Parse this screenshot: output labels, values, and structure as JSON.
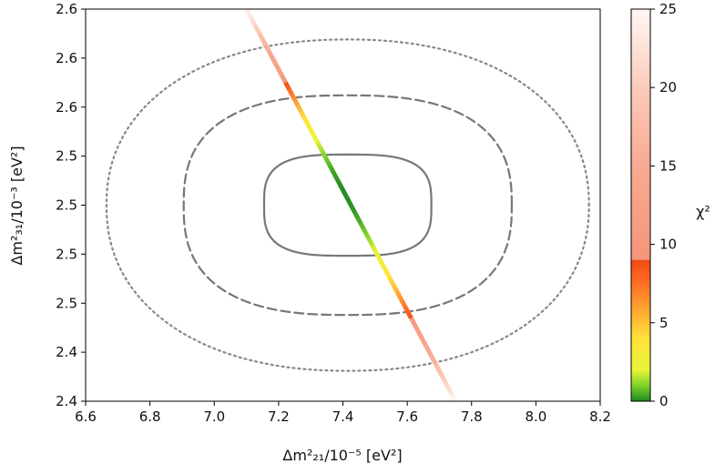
{
  "chart_data": {
    "type": "scatter",
    "title": "",
    "xlabel": "Δm²₂₁/10⁻⁵ [eV²]",
    "ylabel": "Δm²₃₁/10⁻³ [eV²]",
    "xlim": [
      6.6,
      8.2
    ],
    "ylim": [
      2.4,
      2.6
    ],
    "x_tick_values": [
      6.6,
      6.8,
      7.0,
      7.2,
      7.4,
      7.6,
      7.8,
      8.0,
      8.2
    ],
    "x_tick_labels": [
      "6.6",
      "6.8",
      "7.0",
      "7.2",
      "7.4",
      "7.6",
      "7.8",
      "8.0",
      "8.2"
    ],
    "y_tick_values": [
      2.4,
      2.425,
      2.45,
      2.475,
      2.5,
      2.525,
      2.55,
      2.575,
      2.6
    ],
    "y_tick_labels": [
      "2.4",
      "2.4",
      "2.5",
      "2.5",
      "2.5",
      "2.5",
      "2.6",
      "2.6",
      "2.6"
    ],
    "grid": false,
    "contours": [
      {
        "style": "solid",
        "color": "#777777",
        "center": [
          7.415,
          2.5
        ],
        "half_width": [
          0.26,
          0.0258
        ]
      },
      {
        "style": "dashed",
        "color": "#777777",
        "center": [
          7.415,
          2.5
        ],
        "half_width": [
          0.51,
          0.056
        ]
      },
      {
        "style": "dotted",
        "color": "#888888",
        "center": [
          7.415,
          2.5
        ],
        "half_width": [
          0.75,
          0.0845
        ]
      }
    ],
    "band": {
      "from": [
        7.1,
        2.6
      ],
      "to": [
        7.75,
        2.4
      ],
      "min_at": [
        7.405,
        2.5
      ],
      "chi2_at_ends": 25
    },
    "colorbar": {
      "label": "χ²",
      "range": [
        0,
        25
      ],
      "tick_values": [
        0,
        5,
        10,
        15,
        20,
        25
      ],
      "tick_labels": [
        "0",
        "5",
        "10",
        "15",
        "20",
        "25"
      ],
      "stops": [
        {
          "value": 0,
          "color": "#1e8a1e"
        },
        {
          "value": 1,
          "color": "#7fd22a"
        },
        {
          "value": 2,
          "color": "#e8f538"
        },
        {
          "value": 4,
          "color": "#ffe23a"
        },
        {
          "value": 6,
          "color": "#ffa030"
        },
        {
          "value": 8,
          "color": "#ff6020"
        },
        {
          "value": 9,
          "color": "#f04a14"
        },
        {
          "value": 9.01,
          "color": "#f4957a"
        },
        {
          "value": 15,
          "color": "#f8aa92"
        },
        {
          "value": 20,
          "color": "#fbcbbb"
        },
        {
          "value": 25,
          "color": "#fff7f4"
        }
      ]
    }
  }
}
